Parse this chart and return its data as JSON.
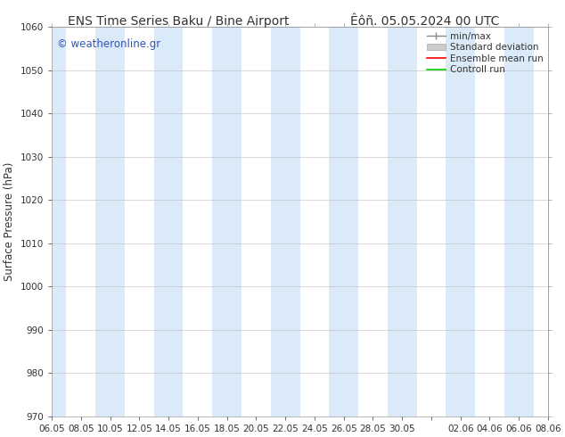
{
  "title_left": "ENS Time Series Baku / Bine Airport",
  "title_right": "Êôñ. 05.05.2024 00 UTC",
  "ylabel": "Surface Pressure (hPa)",
  "ylim": [
    970,
    1060
  ],
  "yticks": [
    970,
    980,
    990,
    1000,
    1010,
    1020,
    1030,
    1040,
    1050,
    1060
  ],
  "xtick_labels": [
    "06.05",
    "08.05",
    "10.05",
    "12.05",
    "14.05",
    "16.05",
    "18.05",
    "20.05",
    "22.05",
    "24.05",
    "26.05",
    "28.05",
    "30.05",
    "",
    "02.06",
    "04.06",
    "06.06",
    "08.06"
  ],
  "background_color": "#ffffff",
  "plot_bg_color": "#ffffff",
  "stripe_color": "#daeaf8",
  "legend_items": [
    {
      "label": "min/max",
      "color": "#aaaaaa",
      "lw": 1.5
    },
    {
      "label": "Standard deviation",
      "color": "#cccccc",
      "lw": 6
    },
    {
      "label": "Ensemble mean run",
      "color": "#ff0000",
      "lw": 1.5
    },
    {
      "label": "Controll run",
      "color": "#00cc00",
      "lw": 1.5
    }
  ],
  "watermark": "© weatheronline.gr",
  "watermark_color": "#3355bb",
  "title_fontsize": 10,
  "axis_fontsize": 8.5,
  "tick_fontsize": 7.5,
  "legend_fontsize": 7.5
}
